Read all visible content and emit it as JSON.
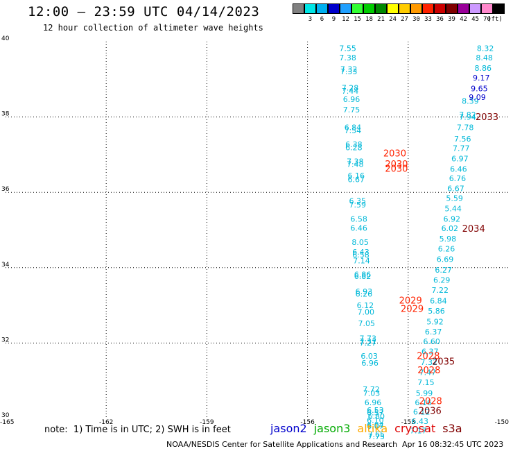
{
  "header": {
    "title": "12:00 – 23:59 UTC 04/14/2023",
    "subtitle": "12 hour collection of altimeter wave heights"
  },
  "legend": {
    "unit": "(ft)",
    "bins": [
      {
        "color": "#808080",
        "label": ""
      },
      {
        "color": "#00e5e5",
        "label": "3"
      },
      {
        "color": "#00b0f0",
        "label": "6"
      },
      {
        "color": "#0000cc",
        "label": "9"
      },
      {
        "color": "#20a0ff",
        "label": "12"
      },
      {
        "color": "#33ff33",
        "label": "15"
      },
      {
        "color": "#00cc00",
        "label": "18"
      },
      {
        "color": "#008800",
        "label": "21"
      },
      {
        "color": "#ffff00",
        "label": "24"
      },
      {
        "color": "#ffcc00",
        "label": "27"
      },
      {
        "color": "#ff9900",
        "label": "30"
      },
      {
        "color": "#ff2200",
        "label": "33"
      },
      {
        "color": "#cc0000",
        "label": "36"
      },
      {
        "color": "#800000",
        "label": "39"
      },
      {
        "color": "#990099",
        "label": "42"
      },
      {
        "color": "#cc99ff",
        "label": "45"
      },
      {
        "color": "#ff88cc",
        "label": "70"
      },
      {
        "color": "#000000",
        "label": ""
      }
    ]
  },
  "chart_data": {
    "type": "scatter",
    "title": "12:00 – 23:59 UTC 04/14/2023",
    "subtitle": "12 hour collection of altimeter wave heights",
    "xlim": [
      -165,
      -150
    ],
    "ylim": [
      30,
      40
    ],
    "x_ticks": [
      "-165",
      "-162",
      "-159",
      "-156",
      "-153",
      "-150"
    ],
    "y_ticks": [
      "30",
      "32",
      "34",
      "36",
      "38",
      "40"
    ],
    "grid": true,
    "series": [
      {
        "name": "jason3",
        "color": "#00b8d8",
        "points": [
          {
            "lon": -154.8,
            "lat": 39.75,
            "v": "7.55"
          },
          {
            "lon": -154.8,
            "lat": 39.5,
            "v": "7.38"
          },
          {
            "lon": -154.77,
            "lat": 39.2,
            "v": "7.32"
          },
          {
            "lon": -154.77,
            "lat": 39.13,
            "v": "7.33"
          },
          {
            "lon": -154.73,
            "lat": 38.7,
            "v": "7.28"
          },
          {
            "lon": -154.73,
            "lat": 38.62,
            "v": "7.44"
          },
          {
            "lon": -154.69,
            "lat": 38.4,
            "v": "6.96"
          },
          {
            "lon": -154.69,
            "lat": 38.12,
            "v": "7.75"
          },
          {
            "lon": -154.65,
            "lat": 37.65,
            "v": "6.84"
          },
          {
            "lon": -154.65,
            "lat": 37.57,
            "v": "7.54"
          },
          {
            "lon": -154.62,
            "lat": 37.2,
            "v": "6.38"
          },
          {
            "lon": -154.62,
            "lat": 37.12,
            "v": "6.28"
          },
          {
            "lon": -154.58,
            "lat": 36.75,
            "v": "7.38"
          },
          {
            "lon": -154.58,
            "lat": 36.68,
            "v": "7.48"
          },
          {
            "lon": -154.55,
            "lat": 36.37,
            "v": "6.16"
          },
          {
            "lon": -154.55,
            "lat": 36.27,
            "v": "6.67"
          },
          {
            "lon": -154.51,
            "lat": 35.7,
            "v": "6.35"
          },
          {
            "lon": -154.51,
            "lat": 35.6,
            "v": "7.59"
          },
          {
            "lon": -154.47,
            "lat": 35.22,
            "v": "6.58"
          },
          {
            "lon": -154.47,
            "lat": 34.98,
            "v": "6.46"
          },
          {
            "lon": -154.43,
            "lat": 34.6,
            "v": "8.05"
          },
          {
            "lon": -154.41,
            "lat": 34.35,
            "v": "6.43"
          },
          {
            "lon": -154.41,
            "lat": 34.27,
            "v": "6.58"
          },
          {
            "lon": -154.39,
            "lat": 34.12,
            "v": "7.14"
          },
          {
            "lon": -154.36,
            "lat": 33.75,
            "v": "6.86"
          },
          {
            "lon": -154.36,
            "lat": 33.7,
            "v": "6.82"
          },
          {
            "lon": -154.32,
            "lat": 33.3,
            "v": "6.93"
          },
          {
            "lon": -154.32,
            "lat": 33.23,
            "v": "6.26"
          },
          {
            "lon": -154.28,
            "lat": 32.93,
            "v": "6.12"
          },
          {
            "lon": -154.26,
            "lat": 32.75,
            "v": "7.00"
          },
          {
            "lon": -154.24,
            "lat": 32.45,
            "v": "7.05"
          },
          {
            "lon": -154.2,
            "lat": 32.05,
            "v": "7.73"
          },
          {
            "lon": -154.2,
            "lat": 31.97,
            "v": "7.31"
          },
          {
            "lon": -154.2,
            "lat": 31.93,
            "v": "7.27"
          },
          {
            "lon": -154.16,
            "lat": 31.58,
            "v": "6.03"
          },
          {
            "lon": -154.14,
            "lat": 31.4,
            "v": "6.96"
          },
          {
            "lon": -154.1,
            "lat": 30.7,
            "v": "7.72"
          },
          {
            "lon": -154.09,
            "lat": 30.6,
            "v": "7.03"
          },
          {
            "lon": -154.05,
            "lat": 30.35,
            "v": "6.96"
          },
          {
            "lon": -153.98,
            "lat": 30.15,
            "v": "6.53"
          },
          {
            "lon": -153.98,
            "lat": 30.08,
            "v": "6.57"
          },
          {
            "lon": -153.95,
            "lat": 29.98,
            "v": "6.80"
          },
          {
            "lon": -153.98,
            "lat": 29.88,
            "v": "6.10"
          },
          {
            "lon": -153.98,
            "lat": 29.75,
            "v": "6.04"
          },
          {
            "lon": -153.98,
            "lat": 29.72,
            "v": "6.07"
          },
          {
            "lon": -153.95,
            "lat": 29.5,
            "v": "7.65"
          },
          {
            "lon": -153.95,
            "lat": 29.45,
            "v": "7.75"
          },
          {
            "lon": -150.7,
            "lat": 39.75,
            "v": "8.32"
          },
          {
            "lon": -150.73,
            "lat": 39.5,
            "v": "8.48"
          },
          {
            "lon": -150.77,
            "lat": 39.23,
            "v": "8.86"
          },
          {
            "lon": -151.15,
            "lat": 38.35,
            "v": "8.39"
          },
          {
            "lon": -151.23,
            "lat": 37.98,
            "v": "7.82"
          },
          {
            "lon": -151.23,
            "lat": 37.93,
            "v": "7.94"
          },
          {
            "lon": -151.3,
            "lat": 37.65,
            "v": "7.78"
          },
          {
            "lon": -151.38,
            "lat": 37.35,
            "v": "7.56"
          },
          {
            "lon": -151.42,
            "lat": 37.1,
            "v": "7.77"
          },
          {
            "lon": -151.46,
            "lat": 36.82,
            "v": "6.97"
          },
          {
            "lon": -151.5,
            "lat": 36.55,
            "v": "6.46"
          },
          {
            "lon": -151.53,
            "lat": 36.3,
            "v": "6.76"
          },
          {
            "lon": -151.58,
            "lat": 36.03,
            "v": "6.67"
          },
          {
            "lon": -151.62,
            "lat": 35.77,
            "v": "5.59"
          },
          {
            "lon": -151.66,
            "lat": 35.5,
            "v": "5.44"
          },
          {
            "lon": -151.7,
            "lat": 35.22,
            "v": "6.92"
          },
          {
            "lon": -151.76,
            "lat": 34.97,
            "v": "6.02"
          },
          {
            "lon": -151.82,
            "lat": 34.7,
            "v": "5.98"
          },
          {
            "lon": -151.86,
            "lat": 34.43,
            "v": "6.26"
          },
          {
            "lon": -151.9,
            "lat": 34.15,
            "v": "6.69"
          },
          {
            "lon": -151.95,
            "lat": 33.87,
            "v": "6.27"
          },
          {
            "lon": -152.0,
            "lat": 33.6,
            "v": "6.29"
          },
          {
            "lon": -152.05,
            "lat": 33.33,
            "v": "7.22"
          },
          {
            "lon": -152.1,
            "lat": 33.05,
            "v": "6.84"
          },
          {
            "lon": -152.16,
            "lat": 32.78,
            "v": "5.86"
          },
          {
            "lon": -152.2,
            "lat": 32.5,
            "v": "5.92"
          },
          {
            "lon": -152.25,
            "lat": 32.23,
            "v": "6.37"
          },
          {
            "lon": -152.3,
            "lat": 31.97,
            "v": "6.60"
          },
          {
            "lon": -152.35,
            "lat": 31.7,
            "v": "6.37"
          },
          {
            "lon": -152.38,
            "lat": 31.42,
            "v": "7.32"
          },
          {
            "lon": -152.42,
            "lat": 31.15,
            "v": "7.47"
          },
          {
            "lon": -152.47,
            "lat": 30.88,
            "v": "7.15"
          },
          {
            "lon": -152.52,
            "lat": 30.6,
            "v": "5.99"
          },
          {
            "lon": -152.55,
            "lat": 30.35,
            "v": "6.16"
          },
          {
            "lon": -152.6,
            "lat": 30.1,
            "v": "6.12"
          },
          {
            "lon": -152.65,
            "lat": 29.85,
            "v": "6.43"
          },
          {
            "lon": -152.7,
            "lat": 29.6,
            "v": "7.17"
          }
        ]
      },
      {
        "name": "jason2",
        "color": "#0000cc",
        "points": [
          {
            "lon": -150.82,
            "lat": 38.97,
            "v": "9.17"
          },
          {
            "lon": -150.88,
            "lat": 38.68,
            "v": "9.65"
          },
          {
            "lon": -150.94,
            "lat": 38.45,
            "v": "9.09"
          }
        ]
      },
      {
        "name": "cryosat",
        "color": "#ff2200",
        "points": [
          {
            "lon": -153.4,
            "lat": 36.95,
            "v": "2030"
          },
          {
            "lon": -153.35,
            "lat": 36.67,
            "v": "2030"
          },
          {
            "lon": -153.35,
            "lat": 36.55,
            "v": "2030"
          },
          {
            "lon": -152.93,
            "lat": 33.05,
            "v": "2029"
          },
          {
            "lon": -152.88,
            "lat": 32.83,
            "v": "2029"
          },
          {
            "lon": -152.4,
            "lat": 31.57,
            "v": "2028"
          },
          {
            "lon": -152.38,
            "lat": 31.2,
            "v": "2028"
          },
          {
            "lon": -152.33,
            "lat": 30.38,
            "v": "2028"
          }
        ]
      },
      {
        "name": "s3a",
        "color": "#800000",
        "points": [
          {
            "lon": -150.65,
            "lat": 37.92,
            "v": "2033"
          },
          {
            "lon": -151.05,
            "lat": 34.95,
            "v": "2034"
          },
          {
            "lon": -151.95,
            "lat": 31.43,
            "v": "2035"
          },
          {
            "lon": -152.35,
            "lat": 30.12,
            "v": "2036"
          }
        ]
      }
    ]
  },
  "footer": {
    "note": "note:  1) Time is in UTC; 2) SWH is in feet",
    "missions": [
      {
        "name": "jason2",
        "color": "#0000cc"
      },
      {
        "name": "jason3",
        "color": "#00aa00"
      },
      {
        "name": "altika",
        "color": "#ffaa00"
      },
      {
        "name": "cryosat",
        "color": "#dd0000"
      },
      {
        "name": "s3a",
        "color": "#800000"
      }
    ],
    "credits": "NOAA/NESDIS Center for Satellite Applications and Research",
    "date": "Apr 16 08:32:45 UTC 2023"
  }
}
